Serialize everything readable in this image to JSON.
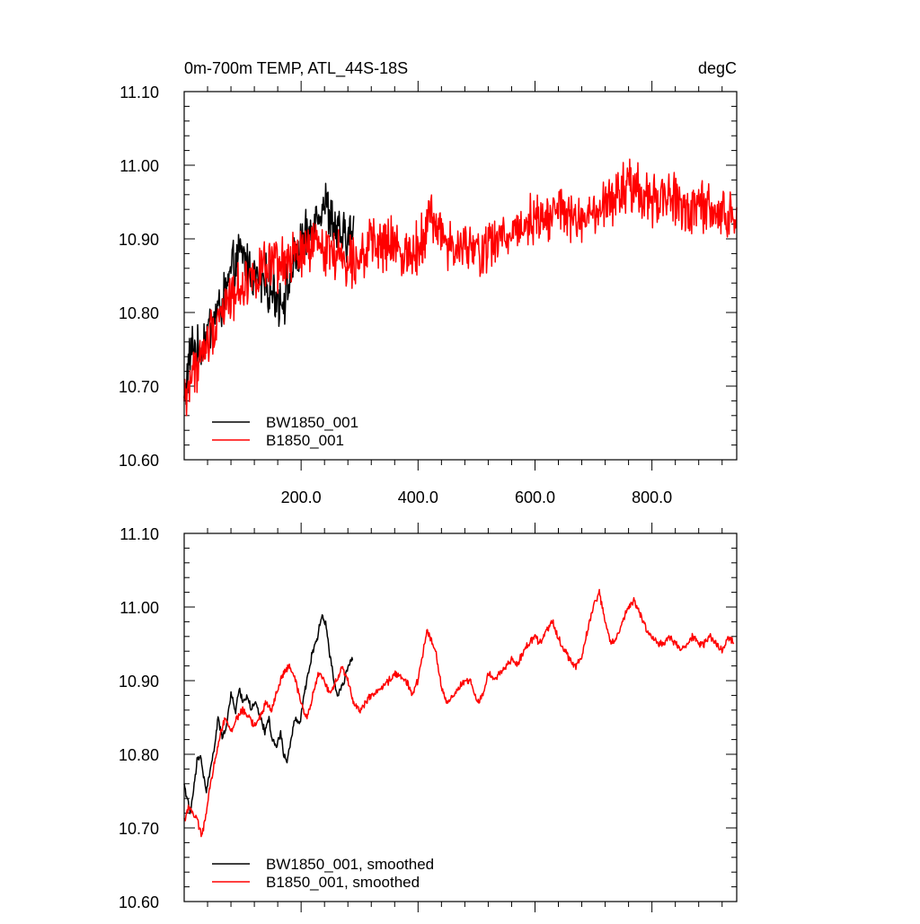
{
  "colors": {
    "series_black": "#000000",
    "series_red": "#ff0000"
  },
  "chart_data": [
    {
      "type": "line",
      "title_left": "0m-700m TEMP, ATL_44S-18S",
      "title_right": "degC",
      "xlabel": "",
      "ylabel": "",
      "xlim": [
        0,
        945
      ],
      "ylim": [
        10.6,
        11.1
      ],
      "yticks": [
        10.6,
        10.7,
        10.8,
        10.9,
        11.0,
        11.1
      ],
      "ytick_labels": [
        "10.60",
        "10.70",
        "10.80",
        "10.90",
        "11.00",
        "11.10"
      ],
      "xticks": [
        200,
        400,
        600,
        800
      ],
      "xtick_labels": [
        "200.0",
        "400.0",
        "600.0",
        "800.0"
      ],
      "legend_location": "lower-left",
      "series": [
        {
          "name": "BW1850_001",
          "color": "#000000",
          "noise": 0.028,
          "x": [
            0,
            8,
            16,
            24,
            32,
            40,
            48,
            56,
            64,
            72,
            80,
            90,
            100,
            110,
            120,
            130,
            140,
            150,
            160,
            170,
            180,
            190,
            200,
            210,
            220,
            230,
            240,
            250,
            260,
            270,
            280,
            290
          ],
          "y": [
            10.68,
            10.73,
            10.76,
            10.74,
            10.76,
            10.77,
            10.79,
            10.8,
            10.81,
            10.83,
            10.85,
            10.87,
            10.88,
            10.86,
            10.85,
            10.84,
            10.84,
            10.83,
            10.82,
            10.82,
            10.84,
            10.87,
            10.89,
            10.9,
            10.92,
            10.94,
            10.95,
            10.93,
            10.91,
            10.9,
            10.9,
            10.91
          ]
        },
        {
          "name": "B1850_001",
          "color": "#ff0000",
          "noise": 0.028,
          "x": [
            0,
            15,
            30,
            45,
            60,
            80,
            100,
            120,
            140,
            160,
            180,
            200,
            220,
            240,
            260,
            280,
            300,
            320,
            340,
            360,
            380,
            400,
            420,
            440,
            460,
            480,
            500,
            520,
            540,
            560,
            580,
            600,
            620,
            640,
            660,
            680,
            700,
            720,
            740,
            760,
            780,
            800,
            820,
            840,
            860,
            880,
            900,
            920,
            945
          ],
          "y": [
            10.68,
            10.72,
            10.74,
            10.77,
            10.8,
            10.82,
            10.84,
            10.85,
            10.86,
            10.86,
            10.87,
            10.88,
            10.89,
            10.89,
            10.88,
            10.87,
            10.88,
            10.89,
            10.89,
            10.89,
            10.88,
            10.89,
            10.93,
            10.91,
            10.88,
            10.89,
            10.88,
            10.89,
            10.9,
            10.91,
            10.92,
            10.93,
            10.93,
            10.94,
            10.93,
            10.92,
            10.93,
            10.94,
            10.96,
            10.97,
            10.96,
            10.95,
            10.96,
            10.95,
            10.94,
            10.94,
            10.94,
            10.93,
            10.93
          ]
        }
      ]
    },
    {
      "type": "line",
      "title_left": "",
      "title_right": "",
      "xlabel": "",
      "ylabel": "",
      "xlim": [
        0,
        945
      ],
      "ylim": [
        10.6,
        11.1
      ],
      "yticks": [
        10.6,
        10.7,
        10.8,
        10.9,
        11.0,
        11.1
      ],
      "ytick_labels": [
        "10.60",
        "10.70",
        "10.80",
        "10.90",
        "11.00",
        "11.10"
      ],
      "xticks": [
        200,
        400,
        600,
        800
      ],
      "xtick_labels": [],
      "legend_location": "lower-left",
      "series": [
        {
          "name": "BW1850_001, smoothed",
          "color": "#000000",
          "noise": 0.004,
          "x": [
            0,
            5,
            10,
            16,
            22,
            28,
            33,
            38,
            45,
            52,
            58,
            65,
            72,
            80,
            88,
            95,
            100,
            108,
            115,
            122,
            130,
            138,
            145,
            150,
            158,
            165,
            170,
            176,
            183,
            190,
            198,
            205,
            212,
            220,
            228,
            236,
            244,
            250,
            256,
            262,
            268,
            274,
            280,
            288
          ],
          "y": [
            10.76,
            10.74,
            10.72,
            10.75,
            10.79,
            10.8,
            10.77,
            10.75,
            10.78,
            10.81,
            10.85,
            10.82,
            10.84,
            10.88,
            10.86,
            10.89,
            10.87,
            10.88,
            10.86,
            10.87,
            10.85,
            10.83,
            10.85,
            10.82,
            10.81,
            10.83,
            10.8,
            10.79,
            10.82,
            10.85,
            10.84,
            10.88,
            10.91,
            10.94,
            10.96,
            10.99,
            10.97,
            10.93,
            10.9,
            10.88,
            10.89,
            10.9,
            10.92,
            10.93
          ]
        },
        {
          "name": "B1850_001, smoothed",
          "color": "#ff0000",
          "noise": 0.004,
          "x": [
            0,
            8,
            15,
            22,
            30,
            38,
            45,
            55,
            62,
            70,
            80,
            90,
            100,
            110,
            120,
            130,
            140,
            150,
            160,
            170,
            180,
            190,
            200,
            210,
            220,
            230,
            240,
            250,
            260,
            270,
            280,
            290,
            300,
            320,
            340,
            360,
            380,
            390,
            400,
            415,
            430,
            440,
            450,
            460,
            470,
            480,
            490,
            500,
            510,
            520,
            530,
            540,
            550,
            560,
            570,
            580,
            590,
            600,
            610,
            620,
            630,
            640,
            650,
            660,
            670,
            680,
            690,
            700,
            710,
            720,
            730,
            740,
            750,
            760,
            770,
            780,
            790,
            800,
            810,
            820,
            830,
            840,
            850,
            860,
            870,
            880,
            890,
            900,
            910,
            920,
            930,
            940
          ],
          "y": [
            10.71,
            10.73,
            10.72,
            10.71,
            10.69,
            10.72,
            10.76,
            10.8,
            10.83,
            10.85,
            10.83,
            10.85,
            10.86,
            10.85,
            10.84,
            10.85,
            10.87,
            10.86,
            10.89,
            10.91,
            10.92,
            10.9,
            10.87,
            10.85,
            10.88,
            10.91,
            10.9,
            10.88,
            10.9,
            10.92,
            10.9,
            10.87,
            10.86,
            10.88,
            10.89,
            10.91,
            10.9,
            10.88,
            10.9,
            10.97,
            10.94,
            10.89,
            10.87,
            10.88,
            10.89,
            10.9,
            10.9,
            10.87,
            10.88,
            10.91,
            10.9,
            10.91,
            10.92,
            10.93,
            10.92,
            10.94,
            10.95,
            10.96,
            10.95,
            10.97,
            10.98,
            10.96,
            10.94,
            10.93,
            10.92,
            10.93,
            10.97,
            11.0,
            11.02,
            10.98,
            10.95,
            10.96,
            10.98,
            11.0,
            11.01,
            10.99,
            10.97,
            10.96,
            10.95,
            10.95,
            10.96,
            10.95,
            10.94,
            10.95,
            10.96,
            10.95,
            10.95,
            10.96,
            10.95,
            10.94,
            10.96,
            10.95
          ]
        }
      ]
    }
  ]
}
